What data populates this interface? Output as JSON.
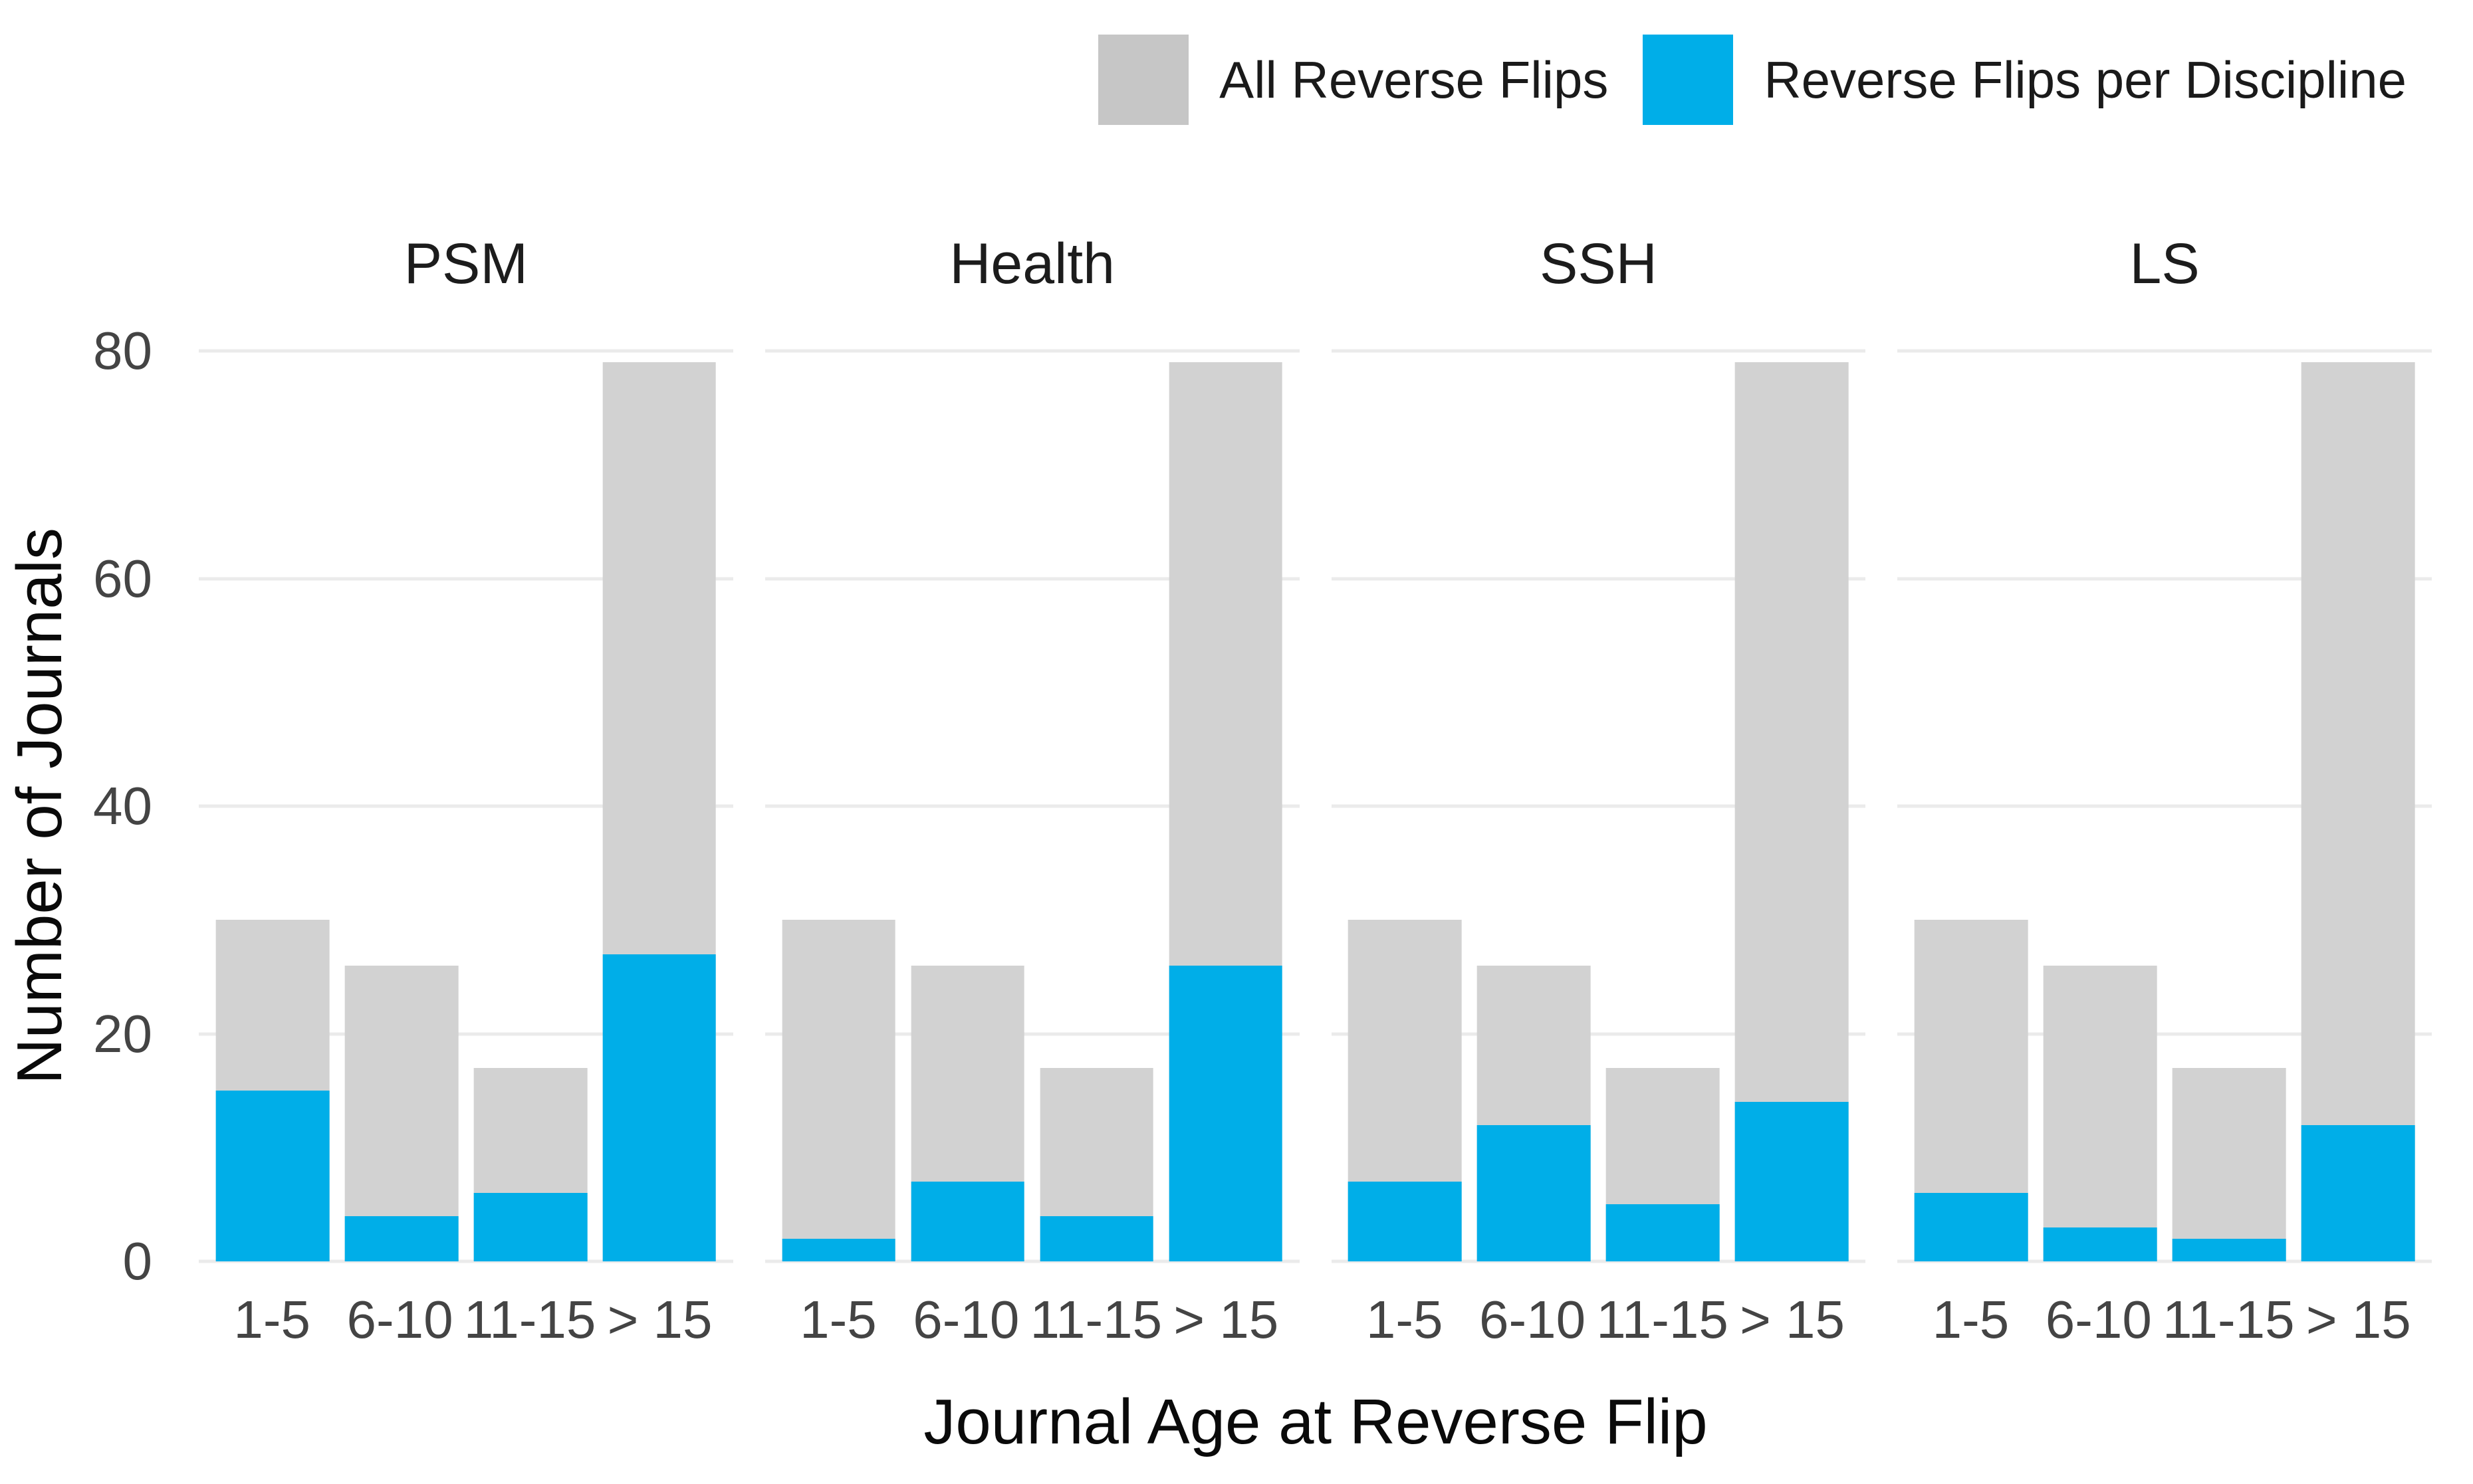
{
  "legend": {
    "items": [
      {
        "label": "All Reverse Flips",
        "color": "#d2d2d2",
        "swatch_color": "#c6c6c6"
      },
      {
        "label": "Reverse Flips per Discipline",
        "color": "#00aee8",
        "swatch_color": "#00aee8"
      }
    ]
  },
  "y_axis": {
    "label": "Number of Journals",
    "ticks": [
      0,
      20,
      40,
      60,
      80
    ],
    "max": 80
  },
  "x_axis": {
    "label": "Journal Age at Reverse Flip",
    "categories": [
      "1-5",
      "6-10",
      "11-15",
      "> 15"
    ]
  },
  "colors": {
    "all_reverse_flips_bar": "#d2d2d2",
    "per_discipline_bar": "#00aee8",
    "gridline": "#ebebeb",
    "tick_text": "#444444",
    "axis_title_text": "#0a0a0a",
    "facet_title_text": "#1c1c1c"
  },
  "chart_data": {
    "type": "bar",
    "title": "",
    "xlabel": "Journal Age at Reverse Flip",
    "ylabel": "Number of Journals",
    "ylim": [
      0,
      80
    ],
    "yticks": [
      0,
      20,
      40,
      60,
      80
    ],
    "grid": "horizontal",
    "legend_position": "top-right",
    "facets": [
      "PSM",
      "Health",
      "SSH",
      "LS"
    ],
    "categories": [
      "1-5",
      "6-10",
      "11-15",
      "> 15"
    ],
    "series": [
      {
        "name": "All Reverse Flips",
        "color": "#d2d2d2",
        "values": {
          "PSM": [
            30,
            26,
            17,
            79
          ],
          "Health": [
            30,
            26,
            17,
            79
          ],
          "SSH": [
            30,
            26,
            17,
            79
          ],
          "LS": [
            30,
            26,
            17,
            79
          ]
        }
      },
      {
        "name": "Reverse Flips per Discipline",
        "color": "#00aee8",
        "values": {
          "PSM": [
            15,
            4,
            6,
            27
          ],
          "Health": [
            2,
            7,
            4,
            26
          ],
          "SSH": [
            7,
            12,
            5,
            14
          ],
          "LS": [
            6,
            3,
            2,
            12
          ]
        }
      }
    ]
  }
}
